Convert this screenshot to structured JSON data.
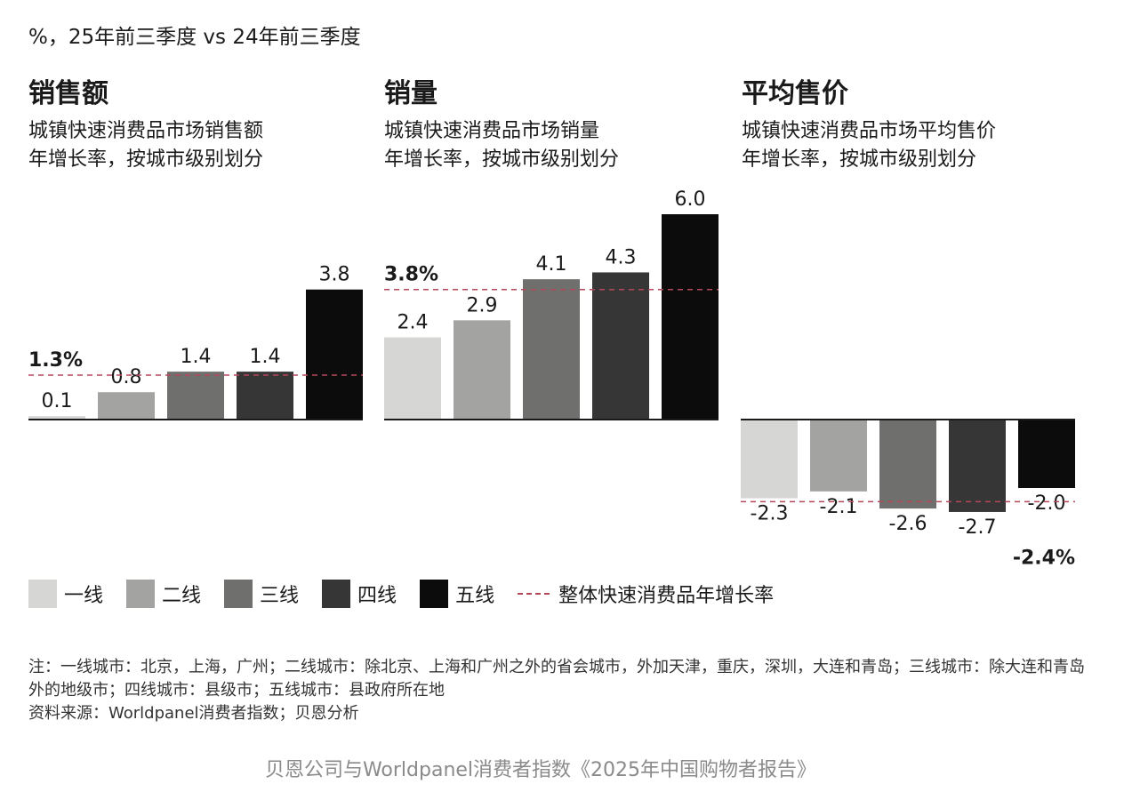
{
  "header": {
    "unit_text": "%，25年前三季度 vs 24年前三季度"
  },
  "panels": [
    {
      "title": "销售额",
      "subtitle": "城镇快速消费品市场销售额\n年增长率，按城市级别划分"
    },
    {
      "title": "销量",
      "subtitle": "城镇快速消费品市场销量\n年增长率，按城市级别划分"
    },
    {
      "title": "平均售价",
      "subtitle": "城镇快速消费品市场平均售价\n年增长率，按城市级别划分"
    }
  ],
  "chart_data": [
    {
      "type": "bar",
      "title": "销售额",
      "categories": [
        "一线",
        "二线",
        "三线",
        "四线",
        "五线"
      ],
      "values": [
        0.1,
        0.8,
        1.4,
        1.4,
        3.8
      ],
      "value_labels": [
        "0.1",
        "0.8",
        "1.4",
        "1.4",
        "3.8"
      ],
      "reference_line": {
        "value": 1.3,
        "label": "1.3%"
      }
    },
    {
      "type": "bar",
      "title": "销量",
      "categories": [
        "一线",
        "二线",
        "三线",
        "四线",
        "五线"
      ],
      "values": [
        2.4,
        2.9,
        4.1,
        4.3,
        6.0
      ],
      "value_labels": [
        "2.4",
        "2.9",
        "4.1",
        "4.3",
        "6.0"
      ],
      "reference_line": {
        "value": 3.8,
        "label": "3.8%"
      }
    },
    {
      "type": "bar",
      "title": "平均售价",
      "categories": [
        "一线",
        "二线",
        "三线",
        "四线",
        "五线"
      ],
      "values": [
        -2.3,
        -2.1,
        -2.6,
        -2.7,
        -2.0
      ],
      "value_labels": [
        "-2.3",
        "-2.1",
        "-2.6",
        "-2.7",
        "-2.0"
      ],
      "reference_line": {
        "value": -2.4,
        "label": "-2.4%"
      }
    }
  ],
  "colors": {
    "categories": [
      "#d6d6d4",
      "#a3a3a1",
      "#6f6f6d",
      "#363636",
      "#0c0c0c"
    ],
    "reference": "#b5475b",
    "baseline": "#1a1a1a"
  },
  "legend": {
    "items": [
      "一线",
      "二线",
      "三线",
      "四线",
      "五线"
    ],
    "reference_label": "整体快速消费品年增长率"
  },
  "note": {
    "line1": "注：一线城市：北京，上海，广州；二线城市：除北京、上海和广州之外的省会城市，外加天津，重庆，深圳，大连和青岛；三线城市：除大连和青岛外的地级市；四线城市：县级市；五线城市：县政府所在地",
    "source": "资料来源：Worldpanel消费者指数；贝恩分析"
  },
  "caption": "贝恩公司与Worldpanel消费者指数《2025年中国购物者报告》"
}
